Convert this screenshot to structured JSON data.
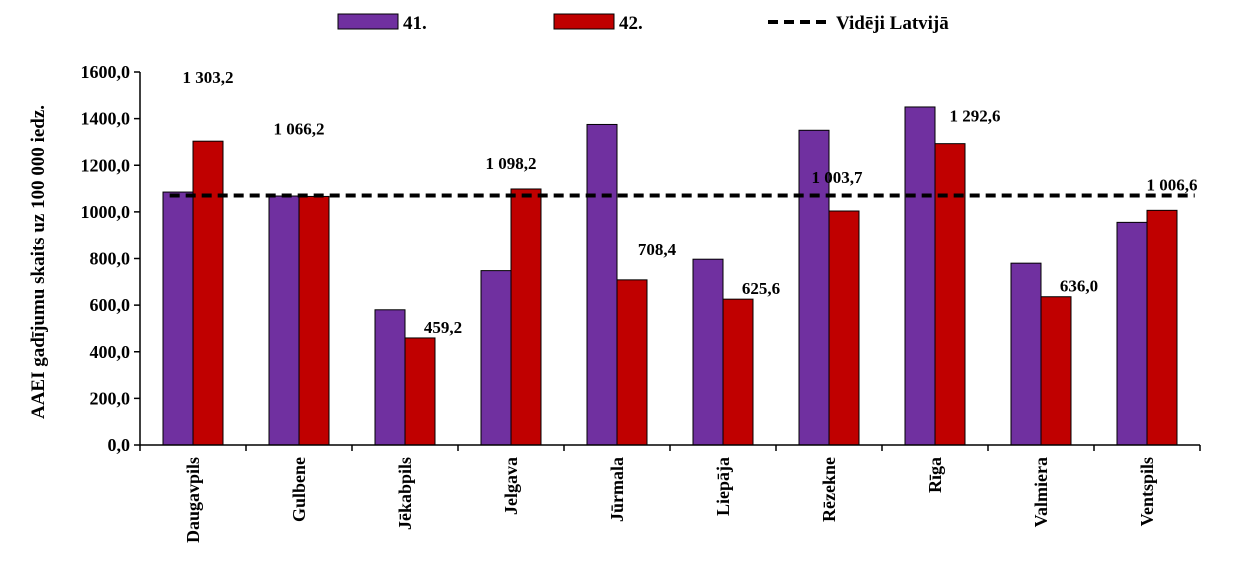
{
  "chart_data": {
    "type": "bar",
    "title": "",
    "xlabel": "",
    "ylabel": "AAEI gadījumu skaits uz 100 000 iedz.",
    "ylim": [
      0,
      1600
    ],
    "ytick_step": 200,
    "ytick_labels": [
      "0,0",
      "200,0",
      "400,0",
      "600,0",
      "800,0",
      "1000,0",
      "1200,0",
      "1400,0",
      "1600,0"
    ],
    "grid": false,
    "legend_position": "top",
    "categories": [
      "Daugavpils",
      "Gulbene",
      "Jēkabpils",
      "Jelgava",
      "Jūrmala",
      "Liepāja",
      "Rēzekne",
      "Rīga",
      "Valmiera",
      "Ventspils"
    ],
    "series": [
      {
        "name": "41.",
        "color": "#7030A0",
        "values": [
          1085,
          1068,
          580,
          748,
          1375,
          797,
          1350,
          1450,
          780,
          955
        ]
      },
      {
        "name": "42.",
        "color": "#C00000",
        "values": [
          1303.2,
          1066.2,
          459.2,
          1098.2,
          708.4,
          625.6,
          1003.7,
          1292.6,
          636.0,
          1006.6
        ]
      }
    ],
    "reference_line": {
      "name": "Vidēji Latvijā",
      "value": 1070,
      "style": "dashed",
      "color": "#000000"
    },
    "data_labels": [
      "1 303,2",
      "1 066,2",
      "459,2",
      "1 098,2",
      "708,4",
      "625,6",
      "1 003,7",
      "1 292,6",
      "636,0",
      "1 006,6"
    ]
  }
}
